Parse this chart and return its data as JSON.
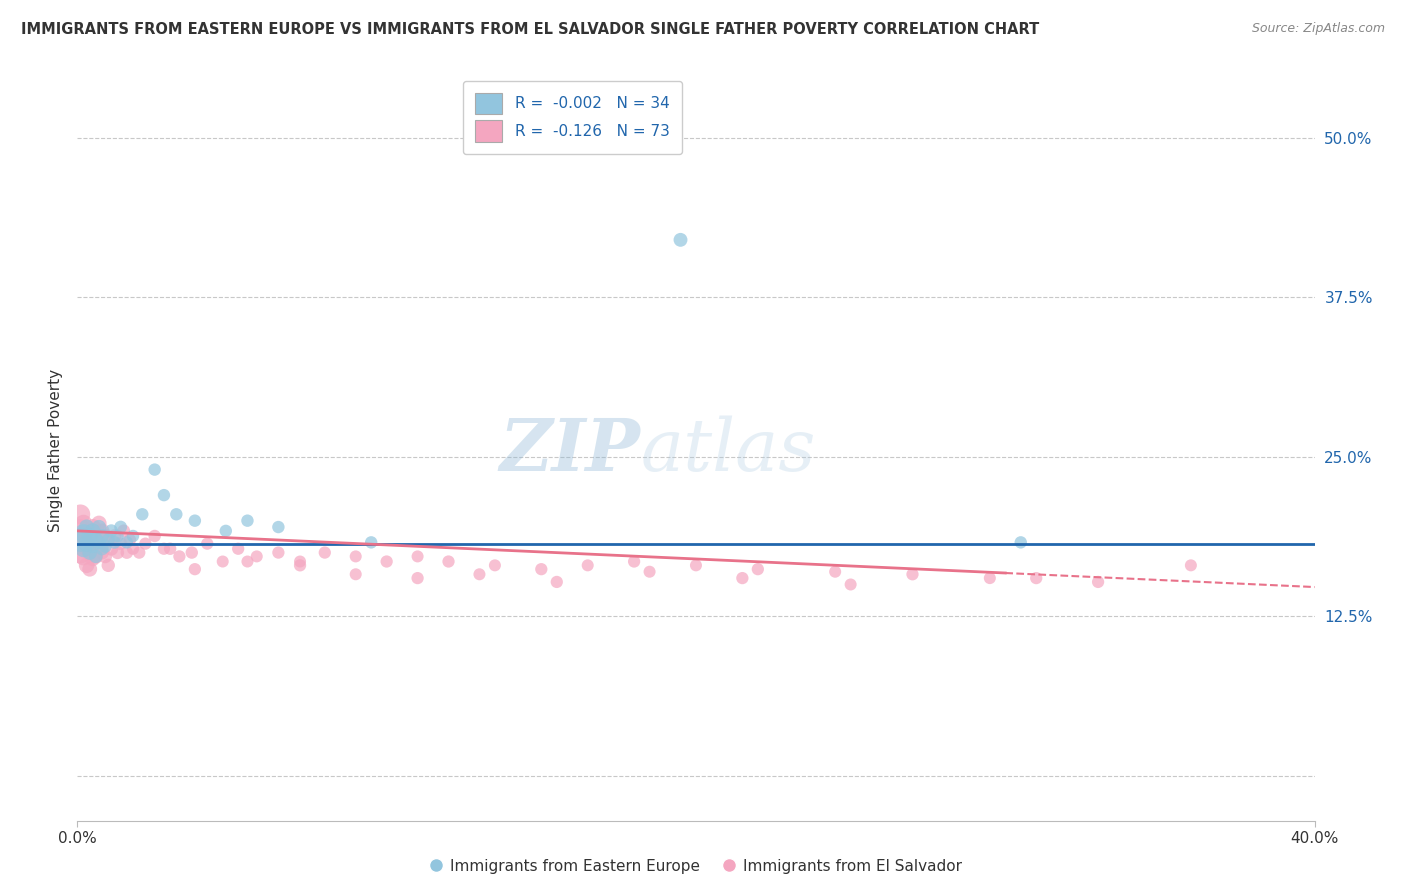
{
  "title": "IMMIGRANTS FROM EASTERN EUROPE VS IMMIGRANTS FROM EL SALVADOR SINGLE FATHER POVERTY CORRELATION CHART",
  "source": "Source: ZipAtlas.com",
  "ylabel": "Single Father Poverty",
  "y_ticks": [
    0.0,
    0.125,
    0.25,
    0.375,
    0.5
  ],
  "y_tick_labels": [
    "",
    "12.5%",
    "25.0%",
    "37.5%",
    "50.0%"
  ],
  "x_range": [
    0.0,
    0.4
  ],
  "y_range": [
    -0.035,
    0.545
  ],
  "legend_blue_R": "-0.002",
  "legend_blue_N": "34",
  "legend_pink_R": "-0.126",
  "legend_pink_N": "73",
  "legend_label_blue": "Immigrants from Eastern Europe",
  "legend_label_pink": "Immigrants from El Salvador",
  "blue_color": "#92C5DE",
  "pink_color": "#F4A6C0",
  "blue_line_color": "#2166AC",
  "pink_line_color": "#E8728A",
  "watermark_ZIP": "ZIP",
  "watermark_atlas": "atlas",
  "blue_trend_y0": 0.182,
  "blue_trend_y1": 0.182,
  "pink_trend_y0": 0.192,
  "pink_trend_y1": 0.148,
  "blue_x": [
    0.001,
    0.002,
    0.002,
    0.003,
    0.003,
    0.004,
    0.004,
    0.005,
    0.005,
    0.006,
    0.006,
    0.007,
    0.007,
    0.008,
    0.008,
    0.009,
    0.01,
    0.011,
    0.012,
    0.013,
    0.014,
    0.016,
    0.018,
    0.021,
    0.025,
    0.028,
    0.032,
    0.038,
    0.048,
    0.055,
    0.065,
    0.095,
    0.195,
    0.305
  ],
  "blue_y": [
    0.185,
    0.19,
    0.178,
    0.182,
    0.195,
    0.188,
    0.175,
    0.192,
    0.18,
    0.185,
    0.172,
    0.195,
    0.183,
    0.188,
    0.178,
    0.18,
    0.185,
    0.192,
    0.183,
    0.188,
    0.195,
    0.183,
    0.188,
    0.205,
    0.24,
    0.22,
    0.205,
    0.2,
    0.192,
    0.2,
    0.195,
    0.183,
    0.42,
    0.183
  ],
  "blue_sizes": [
    300,
    180,
    150,
    140,
    120,
    130,
    110,
    120,
    100,
    110,
    95,
    105,
    95,
    100,
    90,
    90,
    85,
    90,
    85,
    80,
    85,
    80,
    80,
    80,
    80,
    80,
    80,
    80,
    80,
    80,
    80,
    80,
    100,
    80
  ],
  "pink_x": [
    0.001,
    0.001,
    0.001,
    0.002,
    0.002,
    0.002,
    0.003,
    0.003,
    0.003,
    0.004,
    0.004,
    0.004,
    0.005,
    0.005,
    0.005,
    0.006,
    0.006,
    0.007,
    0.007,
    0.008,
    0.008,
    0.009,
    0.009,
    0.01,
    0.01,
    0.011,
    0.012,
    0.013,
    0.014,
    0.015,
    0.016,
    0.017,
    0.018,
    0.02,
    0.022,
    0.025,
    0.028,
    0.03,
    0.033,
    0.037,
    0.042,
    0.047,
    0.052,
    0.058,
    0.065,
    0.072,
    0.08,
    0.09,
    0.1,
    0.11,
    0.12,
    0.135,
    0.15,
    0.165,
    0.18,
    0.2,
    0.22,
    0.245,
    0.27,
    0.295,
    0.33,
    0.36,
    0.038,
    0.055,
    0.072,
    0.09,
    0.11,
    0.13,
    0.155,
    0.185,
    0.215,
    0.25,
    0.31
  ],
  "pink_y": [
    0.192,
    0.175,
    0.205,
    0.185,
    0.172,
    0.198,
    0.19,
    0.178,
    0.165,
    0.188,
    0.175,
    0.162,
    0.195,
    0.182,
    0.17,
    0.188,
    0.172,
    0.198,
    0.18,
    0.192,
    0.175,
    0.188,
    0.172,
    0.185,
    0.165,
    0.178,
    0.188,
    0.175,
    0.182,
    0.192,
    0.175,
    0.185,
    0.178,
    0.175,
    0.182,
    0.188,
    0.178,
    0.178,
    0.172,
    0.175,
    0.182,
    0.168,
    0.178,
    0.172,
    0.175,
    0.168,
    0.175,
    0.172,
    0.168,
    0.172,
    0.168,
    0.165,
    0.162,
    0.165,
    0.168,
    0.165,
    0.162,
    0.16,
    0.158,
    0.155,
    0.152,
    0.165,
    0.162,
    0.168,
    0.165,
    0.158,
    0.155,
    0.158,
    0.152,
    0.16,
    0.155,
    0.15,
    0.155
  ],
  "pink_sizes": [
    280,
    240,
    200,
    190,
    170,
    150,
    160,
    140,
    125,
    145,
    130,
    115,
    135,
    120,
    108,
    125,
    110,
    120,
    105,
    115,
    100,
    110,
    98,
    105,
    93,
    100,
    95,
    90,
    88,
    85,
    83,
    80,
    78,
    80,
    78,
    80,
    78,
    80,
    78,
    80,
    78,
    75,
    78,
    75,
    78,
    75,
    78,
    75,
    78,
    75,
    78,
    75,
    78,
    75,
    78,
    75,
    78,
    75,
    78,
    75,
    78,
    75,
    78,
    75,
    78,
    75,
    78,
    75,
    78,
    75,
    78,
    75,
    78
  ]
}
